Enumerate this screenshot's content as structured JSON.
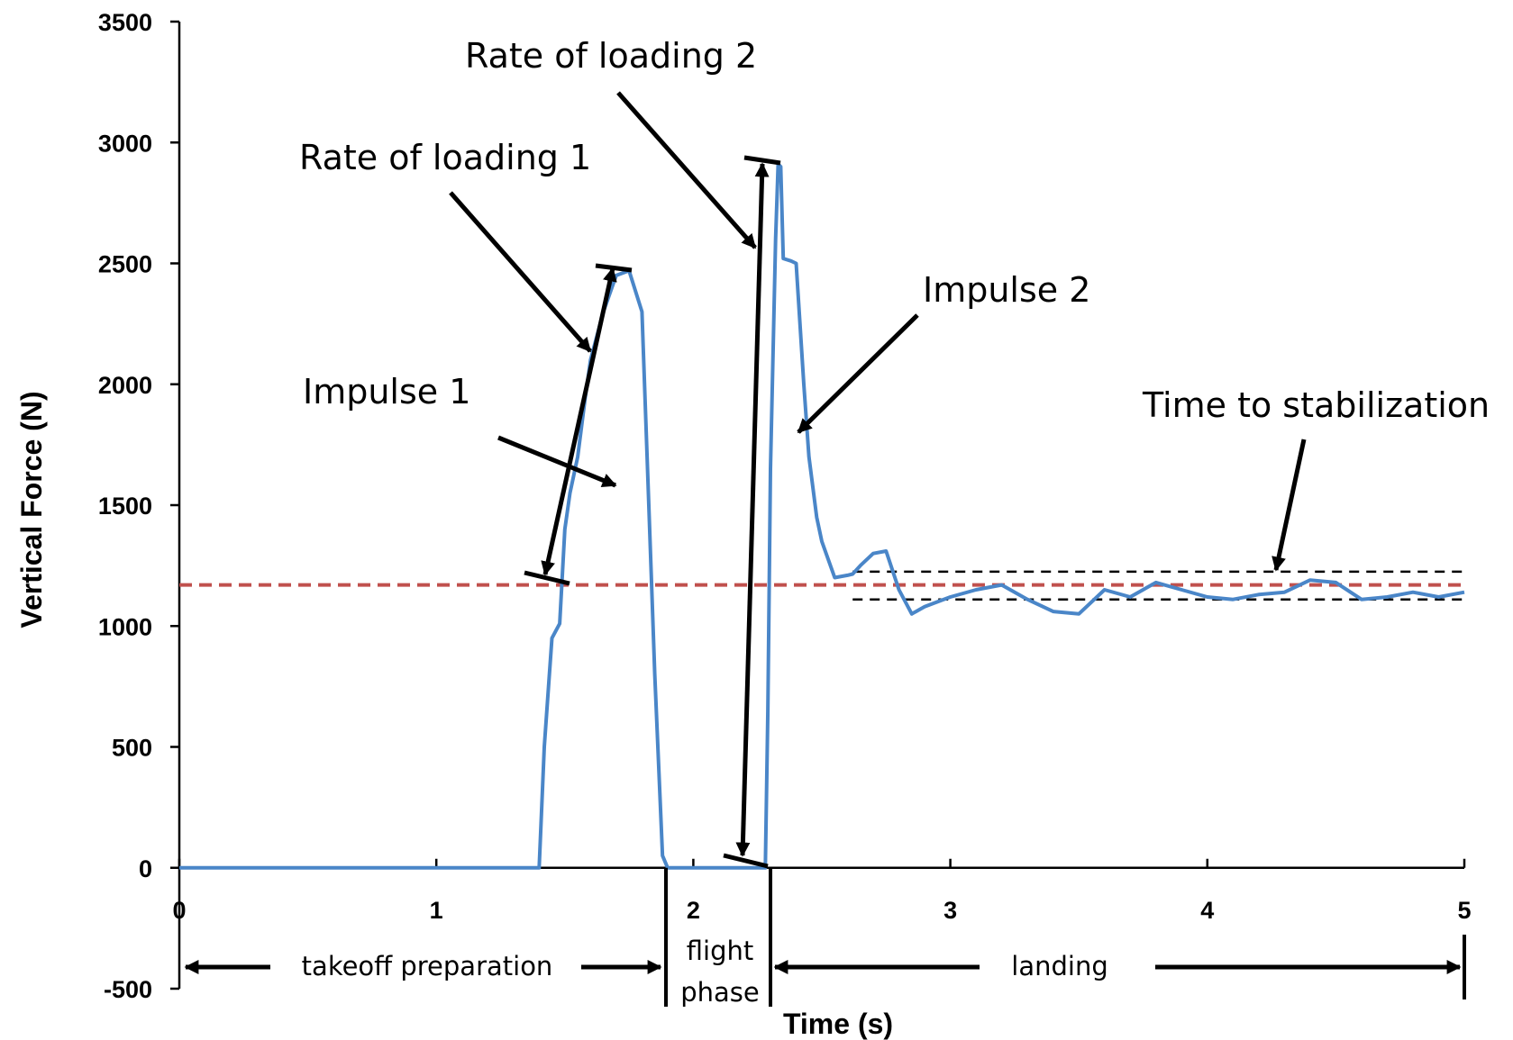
{
  "chart_data": {
    "type": "line",
    "xlabel": "Time (s)",
    "ylabel": "Vertical Force (N)",
    "xlim": [
      0,
      5
    ],
    "ylim": [
      -500,
      3500
    ],
    "x_ticks": [
      0,
      1,
      2,
      3,
      4,
      5
    ],
    "y_ticks": [
      -500,
      0,
      500,
      1000,
      1500,
      2000,
      2500,
      3000,
      3500
    ],
    "grid": false,
    "series": [
      {
        "color": "#4a86c8",
        "x": [
          0,
          1.4,
          1.42,
          1.45,
          1.48,
          1.5,
          1.52,
          1.55,
          1.58,
          1.6,
          1.65,
          1.7,
          1.75,
          1.8,
          1.82,
          1.85,
          1.88,
          1.9,
          2.28,
          2.29,
          2.3,
          2.32,
          2.33,
          2.34,
          2.35,
          2.38,
          2.4,
          2.43,
          2.45,
          2.48,
          2.5,
          2.55,
          2.6,
          2.62,
          2.65,
          2.7,
          2.75,
          2.8,
          2.85,
          2.9,
          2.95,
          3.0,
          3.1,
          3.2,
          3.3,
          3.4,
          3.5,
          3.6,
          3.7,
          3.8,
          3.9,
          4.0,
          4.1,
          4.2,
          4.3,
          4.4,
          4.5,
          4.6,
          4.7,
          4.8,
          4.9,
          5.0
        ],
        "y": [
          0,
          0,
          500,
          950,
          1010,
          1400,
          1550,
          1700,
          1950,
          2100,
          2300,
          2450,
          2470,
          2300,
          1700,
          800,
          50,
          0,
          0,
          650,
          1650,
          2600,
          2910,
          2900,
          2520,
          2510,
          2500,
          2000,
          1700,
          1450,
          1350,
          1200,
          1210,
          1215,
          1250,
          1300,
          1310,
          1150,
          1050,
          1080,
          1100,
          1120,
          1150,
          1170,
          1110,
          1060,
          1050,
          1150,
          1120,
          1180,
          1150,
          1120,
          1110,
          1130,
          1140,
          1190,
          1180,
          1110,
          1120,
          1140,
          1120,
          1140
        ]
      }
    ],
    "reference_lines": [
      {
        "y": 1170,
        "x0": 0,
        "x1": 5.0,
        "color": "#c0504d",
        "style": "dashed"
      },
      {
        "y": 1225,
        "x0": 2.62,
        "x1": 5.0,
        "color": "#000000",
        "style": "dashed"
      },
      {
        "y": 1110,
        "x0": 2.62,
        "x1": 5.0,
        "color": "#000000",
        "style": "dashed"
      }
    ],
    "annotations": {
      "rate1": "Rate of loading 1",
      "rate2": "Rate of loading 2",
      "impulse1": "Impulse 1",
      "impulse2": "Impulse 2",
      "stabilization": "Time to stabilization"
    },
    "phases": {
      "takeoff": "takeoff preparation",
      "flight_line1": "flight",
      "flight_line2": "phase",
      "landing": "landing"
    }
  }
}
